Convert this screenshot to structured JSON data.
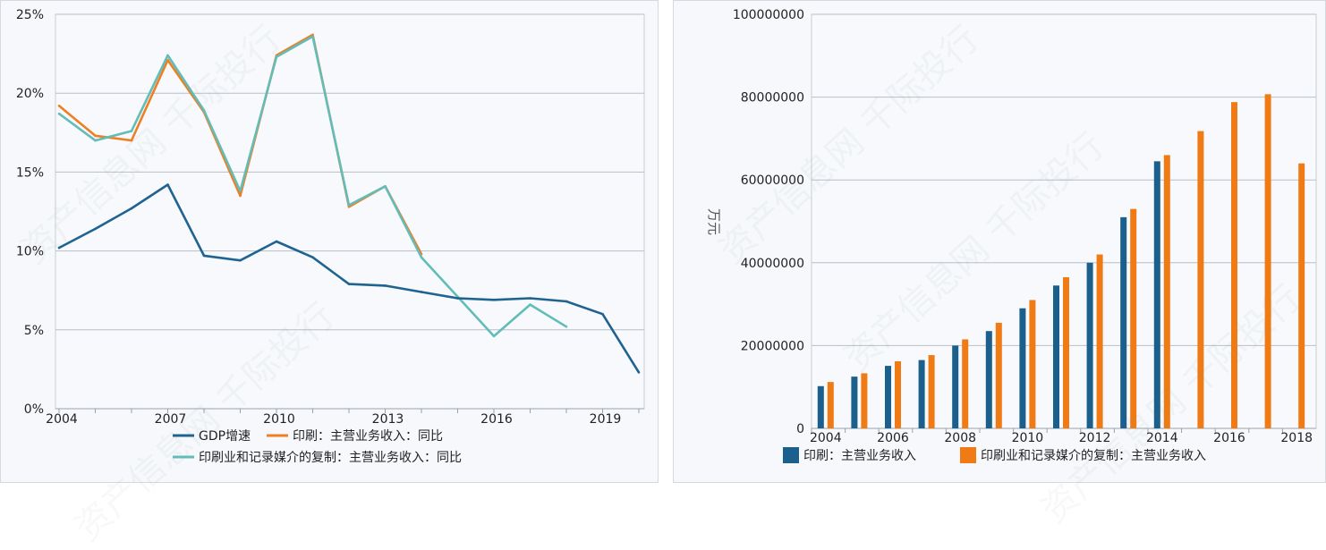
{
  "watermark": "资产信息网 千际投行",
  "colors": {
    "gdp": "#1f6391",
    "print": "#ee7f22",
    "reproduction": "#63bcb8",
    "bar_print": "#1b5f8c",
    "bar_reproduction": "#f07b14"
  },
  "chart_data": [
    {
      "type": "line",
      "title": "",
      "xlabel": "",
      "ylabel": "",
      "ylim": [
        0,
        25
      ],
      "y_unit": "%",
      "y_ticks": [
        "0%",
        "5%",
        "10%",
        "15%",
        "20%",
        "25%"
      ],
      "x_ticks": [
        "2004",
        "2007",
        "2010",
        "2013",
        "2016",
        "2019"
      ],
      "grid": true,
      "legend_position": "bottom",
      "x": [
        2004,
        2005,
        2006,
        2007,
        2008,
        2009,
        2010,
        2011,
        2012,
        2013,
        2014,
        2015,
        2016,
        2017,
        2018,
        2019,
        2020
      ],
      "series": [
        {
          "name": "GDP增速",
          "values": [
            10.2,
            11.4,
            12.7,
            14.2,
            9.7,
            9.4,
            10.6,
            9.6,
            7.9,
            7.8,
            7.4,
            7.0,
            6.9,
            7.0,
            6.8,
            6.0,
            2.3
          ]
        },
        {
          "name": "印刷：主营业务收入：同比",
          "values": [
            19.2,
            17.3,
            17.0,
            22.1,
            18.8,
            13.5,
            22.4,
            23.7,
            12.8,
            14.1,
            9.8,
            null,
            null,
            null,
            null,
            null,
            null
          ]
        },
        {
          "name": "印刷业和记录媒介的复制：主营业务收入：同比",
          "values": [
            18.7,
            17.0,
            17.6,
            22.4,
            18.9,
            13.8,
            22.3,
            23.6,
            12.9,
            14.1,
            9.6,
            7.1,
            4.6,
            6.6,
            5.2,
            null,
            null
          ]
        }
      ]
    },
    {
      "type": "bar",
      "title": "",
      "xlabel": "",
      "ylabel": "万元",
      "ylim": [
        0,
        100000000
      ],
      "y_ticks": [
        "0",
        "20000000",
        "40000000",
        "60000000",
        "80000000",
        "100000000"
      ],
      "x_ticks": [
        "2004",
        "2006",
        "2008",
        "2010",
        "2012",
        "2014",
        "2016",
        "2018"
      ],
      "grid": true,
      "legend_position": "bottom",
      "categories": [
        "2004",
        "2005",
        "2006",
        "2007",
        "2008",
        "2009",
        "2010",
        "2011",
        "2012",
        "2013",
        "2014",
        "2015",
        "2016",
        "2017",
        "2018"
      ],
      "series": [
        {
          "name": "印刷：主营业务收入",
          "values": [
            10200000,
            12500000,
            15100000,
            16500000,
            20000000,
            23500000,
            29000000,
            34500000,
            40000000,
            51000000,
            64500000,
            null,
            null,
            null,
            null
          ]
        },
        {
          "name": "印刷业和记录媒介的复制：主营业务收入",
          "values": [
            11200000,
            13300000,
            16200000,
            17700000,
            21500000,
            25500000,
            31000000,
            36500000,
            42000000,
            53000000,
            66000000,
            71800000,
            78800000,
            80700000,
            64000000
          ]
        }
      ]
    }
  ]
}
